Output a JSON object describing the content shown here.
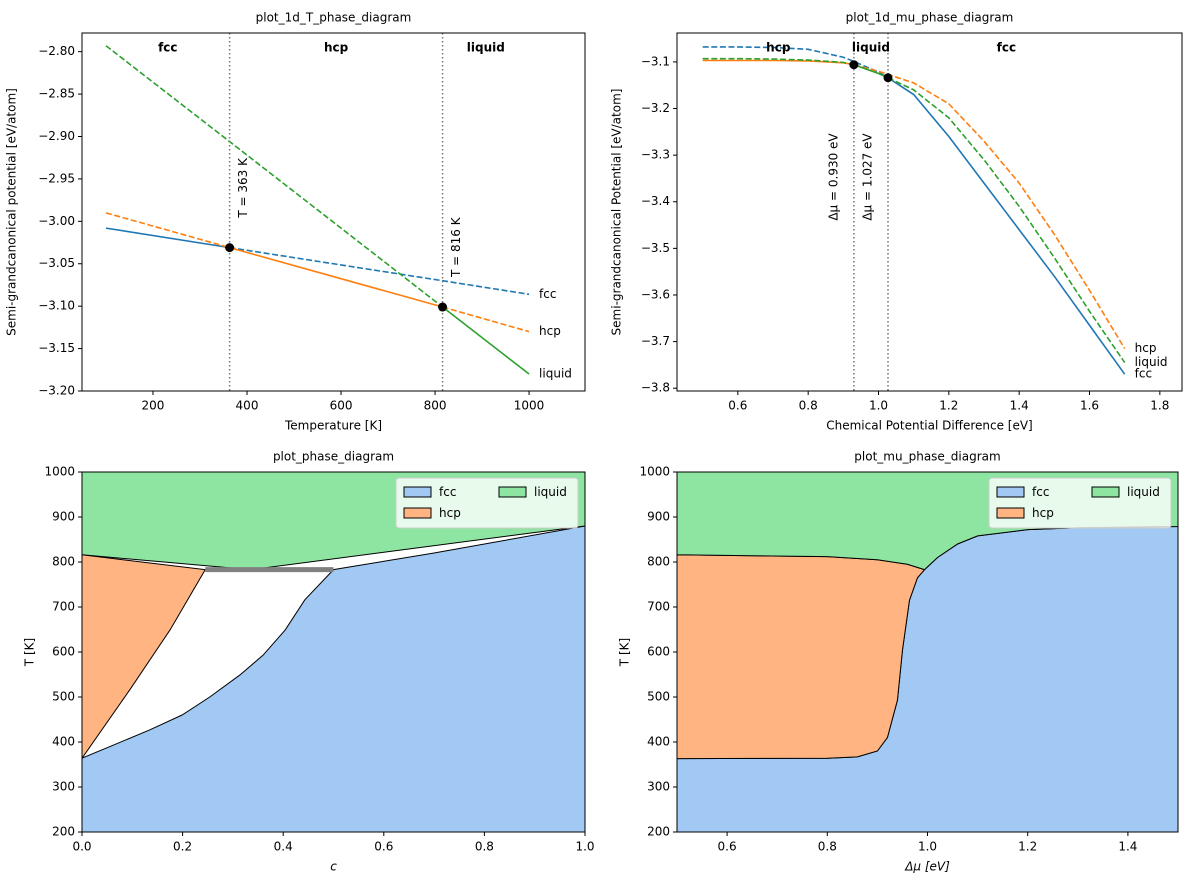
{
  "chart_data": [
    {
      "type": "line",
      "title": "plot_1d_T_phase_diagram",
      "x_label": "Temperature [K]",
      "y_label": "Semi-grandcanonical potential [eV/atom]",
      "xlim": [
        49,
        1119
      ],
      "xticks": [
        200,
        400,
        600,
        800,
        1000
      ],
      "ylim": [
        -3.2,
        -2.778
      ],
      "yticks": [
        {
          "value": -3.2,
          "label": "−3.20"
        },
        {
          "value": -3.15,
          "label": "−3.15"
        },
        {
          "value": -3.1,
          "label": "−3.10"
        },
        {
          "value": -3.05,
          "label": "−3.05"
        },
        {
          "value": -3.0,
          "label": "−3.00"
        },
        {
          "value": -2.95,
          "label": "−2.95"
        },
        {
          "value": -2.9,
          "label": "−2.90"
        },
        {
          "value": -2.85,
          "label": "−2.85"
        },
        {
          "value": -2.8,
          "label": "−2.80"
        }
      ],
      "x": [
        100,
        363,
        816,
        1000
      ],
      "series": [
        {
          "name": "fcc",
          "color": "#1f77b4",
          "values": [
            -3.008,
            -3.031,
            -3.07,
            -3.086
          ],
          "styles": [
            "solid",
            "dashed",
            "dashed"
          ]
        },
        {
          "name": "hcp",
          "color": "#ff7f0e",
          "values": [
            -2.99,
            -3.031,
            -3.101,
            -3.13
          ],
          "styles": [
            "dashed",
            "solid",
            "dashed"
          ]
        },
        {
          "name": "liquid",
          "color": "#2ca02c",
          "values": [
            -2.793,
            -2.906,
            -3.101,
            -3.18
          ],
          "styles": [
            "dashed",
            "dashed",
            "solid"
          ]
        }
      ],
      "transitions": [
        {
          "x": 363,
          "y": -3.031,
          "label": "T = 363 K"
        },
        {
          "x": 816,
          "y": -3.101,
          "label": "T = 816 K"
        }
      ],
      "regions": [
        "fcc",
        "hcp",
        "liquid"
      ]
    },
    {
      "type": "line",
      "title": "plot_1d_mu_phase_diagram",
      "x_label": "Chemical Potential Difference [eV]",
      "y_label": "Semi-grandcanonical Potential [eV/atom]",
      "xlim": [
        0.427,
        1.863
      ],
      "xticks": [
        0.6,
        0.8,
        {
          "value": 1.0,
          "label": "1.0"
        },
        1.2,
        1.4,
        1.6,
        1.8
      ],
      "ylim": [
        -3.806,
        -3.038
      ],
      "yticks": [
        {
          "value": -3.8,
          "label": "−3.8"
        },
        {
          "value": -3.7,
          "label": "−3.7"
        },
        {
          "value": -3.6,
          "label": "−3.6"
        },
        {
          "value": -3.5,
          "label": "−3.5"
        },
        {
          "value": -3.4,
          "label": "−3.4"
        },
        {
          "value": -3.3,
          "label": "−3.3"
        },
        {
          "value": -3.2,
          "label": "−3.2"
        },
        {
          "value": -3.1,
          "label": "−3.1"
        }
      ],
      "x": [
        0.5,
        0.6,
        0.7,
        0.8,
        0.9,
        0.93,
        1.0,
        1.027,
        1.1,
        1.2,
        1.3,
        1.4,
        1.5,
        1.6,
        1.7
      ],
      "series": [
        {
          "name": "fcc",
          "color": "#1f77b4",
          "values": [
            -3.068,
            -3.068,
            -3.069,
            -3.073,
            -3.09,
            -3.099,
            -3.122,
            -3.134,
            -3.17,
            -3.26,
            -3.36,
            -3.46,
            -3.56,
            -3.665,
            -3.77
          ],
          "styles": [
            "dashed",
            "dashed",
            "dashed",
            "dashed",
            "dashed",
            "dashed",
            "dashed",
            "solid",
            "solid",
            "solid",
            "solid",
            "solid",
            "solid",
            "solid"
          ]
        },
        {
          "name": "hcp",
          "color": "#ff7f0e",
          "values": [
            -3.097,
            -3.097,
            -3.097,
            -3.098,
            -3.102,
            -3.106,
            -3.12,
            -3.127,
            -3.145,
            -3.19,
            -3.27,
            -3.36,
            -3.47,
            -3.59,
            -3.715
          ],
          "styles": [
            "solid",
            "solid",
            "solid",
            "solid",
            "solid",
            "dashed",
            "dashed",
            "dashed",
            "dashed",
            "dashed",
            "dashed",
            "dashed",
            "dashed",
            "dashed"
          ]
        },
        {
          "name": "liquid",
          "color": "#2ca02c",
          "values": [
            -3.093,
            -3.093,
            -3.094,
            -3.096,
            -3.101,
            -3.106,
            -3.125,
            -3.134,
            -3.16,
            -3.22,
            -3.31,
            -3.41,
            -3.52,
            -3.635,
            -3.745
          ],
          "styles": [
            "dashed",
            "dashed",
            "dashed",
            "dashed",
            "dashed",
            "solid",
            "solid",
            "dashed",
            "dashed",
            "dashed",
            "dashed",
            "dashed",
            "dashed",
            "dashed"
          ]
        }
      ],
      "transitions": [
        {
          "x": 0.93,
          "y": -3.106,
          "label": "Δμ = 0.930 eV"
        },
        {
          "x": 1.027,
          "y": -3.134,
          "label": "Δμ = 1.027 eV"
        }
      ],
      "regions": [
        "hcp",
        "liquid",
        "fcc"
      ]
    },
    {
      "type": "area",
      "title": "plot_phase_diagram",
      "x_label": "c",
      "y_label": "T [K]",
      "xlim": [
        0,
        1
      ],
      "xticks": [
        {
          "value": 0,
          "label": "0.0"
        },
        0.2,
        0.4,
        0.6,
        0.8,
        {
          "value": 1,
          "label": "1.0"
        }
      ],
      "ylim": [
        200,
        1000
      ],
      "yticks": [
        200,
        300,
        400,
        500,
        600,
        700,
        800,
        900,
        1000
      ],
      "series": [
        {
          "name": "fcc",
          "color": "#a1c9f4",
          "x": [
            0,
            1,
            1,
            0.7,
            0.5,
            0.443,
            0.404,
            0.36,
            0.314,
            0.254,
            0.199,
            0.135,
            0
          ],
          "values": [
            200,
            200,
            880,
            820,
            783,
            716,
            649,
            593,
            549,
            500,
            460,
            427,
            364
          ]
        },
        {
          "name": "hcp",
          "color": "#ffb482",
          "x": [
            0,
            0.245,
            0.175,
            0.095,
            0
          ],
          "values": [
            816,
            783,
            649,
            516,
            364
          ]
        },
        {
          "name": "liquid",
          "color": "#8de5a1",
          "x": [
            0,
            1,
            1,
            0.335,
            0
          ],
          "values": [
            1000,
            1000,
            880,
            783,
            816
          ]
        }
      ],
      "three_phase_line": {
        "color": "#808080",
        "x": [
          0.245,
          0.5
        ],
        "values": [
          783,
          783
        ]
      },
      "legend": "upper right"
    },
    {
      "type": "area",
      "title": "plot_mu_phase_diagram",
      "x_label": "Δμ [eV]",
      "y_label": "T [K]",
      "xlim": [
        0.5,
        1.5
      ],
      "xticks": [
        0.6,
        0.8,
        {
          "value": 1.0,
          "label": "1.0"
        },
        1.2,
        1.4
      ],
      "ylim": [
        200,
        1000
      ],
      "yticks": [
        200,
        300,
        400,
        500,
        600,
        700,
        800,
        900,
        1000
      ],
      "series": [
        {
          "name": "fcc",
          "color": "#a1c9f4",
          "x": [
            0.5,
            1.5,
            1.5,
            1.3,
            1.2,
            1.1,
            1.06,
            1.02,
            0.994,
            0.98,
            0.964,
            0.95,
            0.94,
            0.92,
            0.9,
            0.86,
            0.8,
            0.5
          ],
          "values": [
            200,
            200,
            879,
            876,
            872,
            858,
            840,
            810,
            783,
            765,
            715,
            604,
            493,
            410,
            380,
            367,
            364,
            363
          ]
        },
        {
          "name": "hcp",
          "color": "#ffb482",
          "x": [
            0.5,
            0.8,
            0.86,
            0.9,
            0.92,
            0.94,
            0.95,
            0.964,
            0.98,
            0.994,
            0.96,
            0.9,
            0.8,
            0.5
          ],
          "values": [
            363,
            364,
            367,
            380,
            410,
            493,
            604,
            715,
            765,
            783,
            795,
            805,
            812,
            816
          ]
        },
        {
          "name": "liquid",
          "color": "#8de5a1",
          "x": [
            0.5,
            0.8,
            0.9,
            0.96,
            0.994,
            1.02,
            1.06,
            1.1,
            1.2,
            1.3,
            1.5,
            1.5,
            0.5
          ],
          "values": [
            816,
            812,
            805,
            795,
            783,
            810,
            840,
            858,
            872,
            876,
            879,
            1000,
            1000
          ]
        }
      ],
      "legend": "upper right"
    }
  ]
}
